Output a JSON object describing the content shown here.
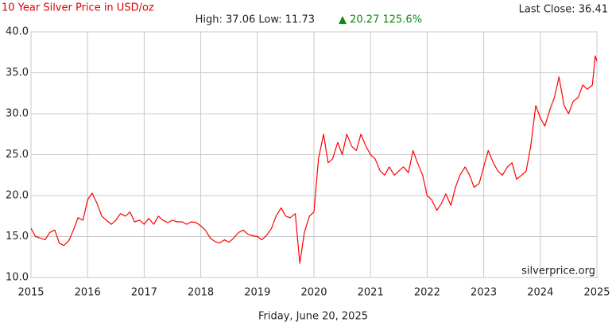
{
  "chart_data": {
    "type": "line",
    "title": "10 Year Silver Price in USD/oz",
    "stats": "High: 37.06 Low: 11.73",
    "change": "▲ 20.27 125.6%",
    "last_close": "Last Close: 36.41",
    "watermark": "silverprice.org",
    "date": "Friday, June 20, 2025",
    "x": [
      2015,
      2015.08,
      2015.17,
      2015.25,
      2015.33,
      2015.42,
      2015.5,
      2015.58,
      2015.67,
      2015.75,
      2015.83,
      2015.92,
      2016,
      2016.08,
      2016.17,
      2016.25,
      2016.33,
      2016.42,
      2016.5,
      2016.58,
      2016.67,
      2016.75,
      2016.83,
      2016.92,
      2017,
      2017.08,
      2017.17,
      2017.25,
      2017.33,
      2017.42,
      2017.5,
      2017.58,
      2017.67,
      2017.75,
      2017.83,
      2017.92,
      2018,
      2018.08,
      2018.17,
      2018.25,
      2018.33,
      2018.42,
      2018.5,
      2018.58,
      2018.67,
      2018.75,
      2018.83,
      2018.92,
      2019,
      2019.08,
      2019.17,
      2019.25,
      2019.33,
      2019.42,
      2019.5,
      2019.58,
      2019.67,
      2019.75,
      2019.83,
      2019.92,
      2020,
      2020.08,
      2020.17,
      2020.25,
      2020.33,
      2020.42,
      2020.5,
      2020.58,
      2020.67,
      2020.75,
      2020.83,
      2020.92,
      2021,
      2021.08,
      2021.17,
      2021.25,
      2021.33,
      2021.42,
      2021.5,
      2021.58,
      2021.67,
      2021.75,
      2021.83,
      2021.92,
      2022,
      2022.08,
      2022.17,
      2022.25,
      2022.33,
      2022.42,
      2022.5,
      2022.58,
      2022.67,
      2022.75,
      2022.83,
      2022.92,
      2023,
      2023.08,
      2023.17,
      2023.25,
      2023.33,
      2023.42,
      2023.5,
      2023.58,
      2023.67,
      2023.75,
      2023.83,
      2023.92,
      2024,
      2024.08,
      2024.17,
      2024.25,
      2024.33,
      2024.42,
      2024.5,
      2024.58,
      2024.67,
      2024.75,
      2024.83,
      2024.92,
      2024.97,
      2025
    ],
    "series": [
      {
        "color": "#ff0000",
        "values": [
          16.0,
          15.0,
          14.8,
          14.6,
          15.5,
          15.8,
          14.2,
          13.9,
          14.5,
          15.8,
          17.3,
          17.0,
          19.5,
          20.3,
          19.0,
          17.5,
          17.0,
          16.5,
          17.0,
          17.8,
          17.5,
          18.0,
          16.8,
          17.0,
          16.5,
          17.2,
          16.5,
          17.5,
          17.0,
          16.7,
          17.0,
          16.8,
          16.8,
          16.5,
          16.8,
          16.7,
          16.3,
          15.8,
          14.8,
          14.4,
          14.2,
          14.6,
          14.3,
          14.8,
          15.5,
          15.8,
          15.3,
          15.1,
          15.0,
          14.6,
          15.2,
          16.0,
          17.5,
          18.5,
          17.5,
          17.3,
          17.8,
          11.73,
          15.5,
          17.5,
          18.0,
          24.5,
          27.5,
          24.0,
          24.5,
          26.5,
          25.0,
          27.5,
          26.0,
          25.5,
          27.5,
          26.0,
          25.0,
          24.5,
          23.0,
          22.5,
          23.5,
          22.5,
          23.0,
          23.5,
          22.8,
          25.5,
          24.0,
          22.5,
          20.0,
          19.5,
          18.2,
          19.0,
          20.2,
          18.8,
          21.0,
          22.5,
          23.5,
          22.5,
          21.0,
          21.5,
          23.5,
          25.5,
          24.0,
          23.0,
          22.5,
          23.5,
          24.0,
          22.0,
          22.5,
          23.0,
          26.0,
          31.0,
          29.5,
          28.5,
          30.5,
          32.0,
          34.5,
          31.0,
          30.0,
          31.5,
          32.0,
          33.5,
          33.0,
          33.5,
          37.06,
          36.41
        ]
      }
    ],
    "xlim": [
      2015,
      2025
    ],
    "xticks": [
      2015,
      2016,
      2017,
      2018,
      2019,
      2020,
      2021,
      2022,
      2023,
      2024,
      2025
    ],
    "ylim": [
      10,
      40
    ],
    "yticks": [
      {
        "value": 10,
        "label": "10.0"
      },
      {
        "value": 15,
        "label": "15.0"
      },
      {
        "value": 20,
        "label": "20.0"
      },
      {
        "value": 25,
        "label": "25.0"
      },
      {
        "value": 30,
        "label": "30.0"
      },
      {
        "value": 35,
        "label": "35.0"
      },
      {
        "value": 40,
        "label": "40.0"
      }
    ],
    "grid": true
  }
}
